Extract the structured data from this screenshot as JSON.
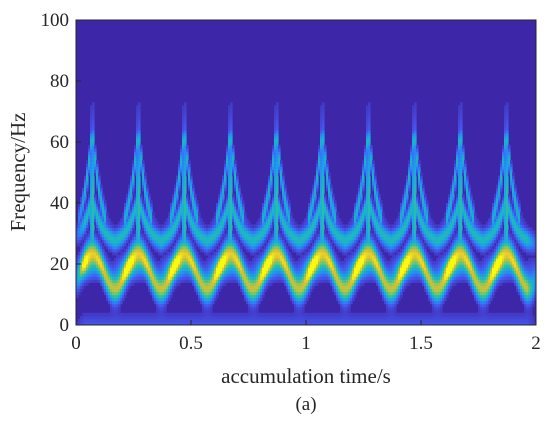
{
  "chart_data": {
    "type": "heatmap",
    "title": "",
    "xlabel": "accumulation time/s",
    "ylabel": "Frequency/Hz",
    "xlim": [
      0,
      2
    ],
    "ylim": [
      0,
      100
    ],
    "xticks": [
      "0",
      "0.5",
      "1",
      "1.5",
      "2"
    ],
    "yticks": [
      "0",
      "20",
      "40",
      "60",
      "80",
      "100"
    ],
    "xtick_values": [
      0,
      0.5,
      1,
      1.5,
      2
    ],
    "ytick_values": [
      0,
      20,
      40,
      60,
      80,
      100
    ],
    "colormap": "parula",
    "background_color": "#3e26a8",
    "peak_color": "#f9fb0e",
    "period_s": 0.2,
    "burst_times_s": [
      0.07,
      0.27,
      0.47,
      0.67,
      0.87,
      1.07,
      1.27,
      1.47,
      1.67,
      1.87
    ],
    "dominant_band_hz": [
      15,
      25
    ],
    "secondary_band_hz": [
      35,
      45
    ],
    "burst_max_frequency_hz": 65,
    "caption": "(a)"
  }
}
